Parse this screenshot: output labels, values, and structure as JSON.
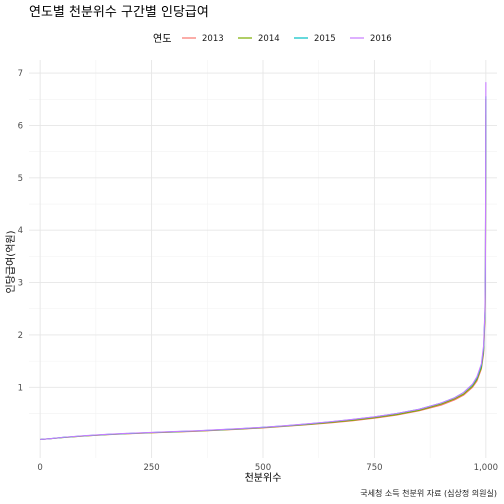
{
  "chart_data": {
    "type": "line",
    "title": "연도별 천분위수 구간별 인당급여",
    "xlabel": "천분위수",
    "ylabel": "인당급여(억원)",
    "caption": "국세청 소득 천분위 자료 (심상정 의원실)",
    "legend": {
      "title": "연도",
      "position": "top"
    },
    "xlim": [
      -25,
      1025
    ],
    "ylim": [
      -0.35,
      7.25
    ],
    "x_ticks": [
      0,
      250,
      500,
      750,
      1000
    ],
    "x_tick_labels": [
      "0",
      "250",
      "500",
      "750",
      "1,000"
    ],
    "y_ticks": [
      1,
      2,
      3,
      4,
      5,
      6,
      7
    ],
    "y_tick_labels": [
      "1",
      "2",
      "3",
      "4",
      "5",
      "6",
      "7"
    ],
    "grid": true,
    "x": [
      1,
      25,
      50,
      100,
      150,
      200,
      250,
      300,
      350,
      400,
      450,
      500,
      550,
      600,
      650,
      700,
      750,
      800,
      850,
      900,
      930,
      950,
      970,
      980,
      990,
      995,
      998,
      999,
      1000
    ],
    "series": [
      {
        "name": "2013",
        "color": "#F8766D",
        "values": [
          0.005,
          0.02,
          0.04,
          0.07,
          0.095,
          0.115,
          0.13,
          0.145,
          0.16,
          0.18,
          0.2,
          0.225,
          0.255,
          0.285,
          0.32,
          0.36,
          0.41,
          0.47,
          0.55,
          0.66,
          0.76,
          0.85,
          1.0,
          1.12,
          1.35,
          1.65,
          2.3,
          3.1,
          6.2
        ]
      },
      {
        "name": "2014",
        "color": "#7CAE00",
        "values": [
          0.005,
          0.02,
          0.04,
          0.072,
          0.097,
          0.117,
          0.133,
          0.148,
          0.163,
          0.183,
          0.205,
          0.23,
          0.26,
          0.29,
          0.33,
          0.37,
          0.42,
          0.48,
          0.56,
          0.68,
          0.78,
          0.87,
          1.02,
          1.15,
          1.38,
          1.7,
          2.4,
          3.2,
          6.5
        ]
      },
      {
        "name": "2015",
        "color": "#00BFC4",
        "values": [
          0.005,
          0.022,
          0.043,
          0.075,
          0.1,
          0.12,
          0.137,
          0.152,
          0.168,
          0.188,
          0.21,
          0.235,
          0.265,
          0.3,
          0.34,
          0.385,
          0.435,
          0.5,
          0.58,
          0.7,
          0.8,
          0.9,
          1.05,
          1.18,
          1.42,
          1.75,
          2.45,
          3.3,
          6.55
        ]
      },
      {
        "name": "2016",
        "color": "#C77CFF",
        "values": [
          0.005,
          0.022,
          0.044,
          0.076,
          0.102,
          0.122,
          0.139,
          0.154,
          0.17,
          0.19,
          0.212,
          0.237,
          0.268,
          0.302,
          0.342,
          0.387,
          0.437,
          0.5,
          0.58,
          0.7,
          0.8,
          0.9,
          1.06,
          1.2,
          1.45,
          1.8,
          2.5,
          3.4,
          6.82
        ]
      }
    ]
  }
}
